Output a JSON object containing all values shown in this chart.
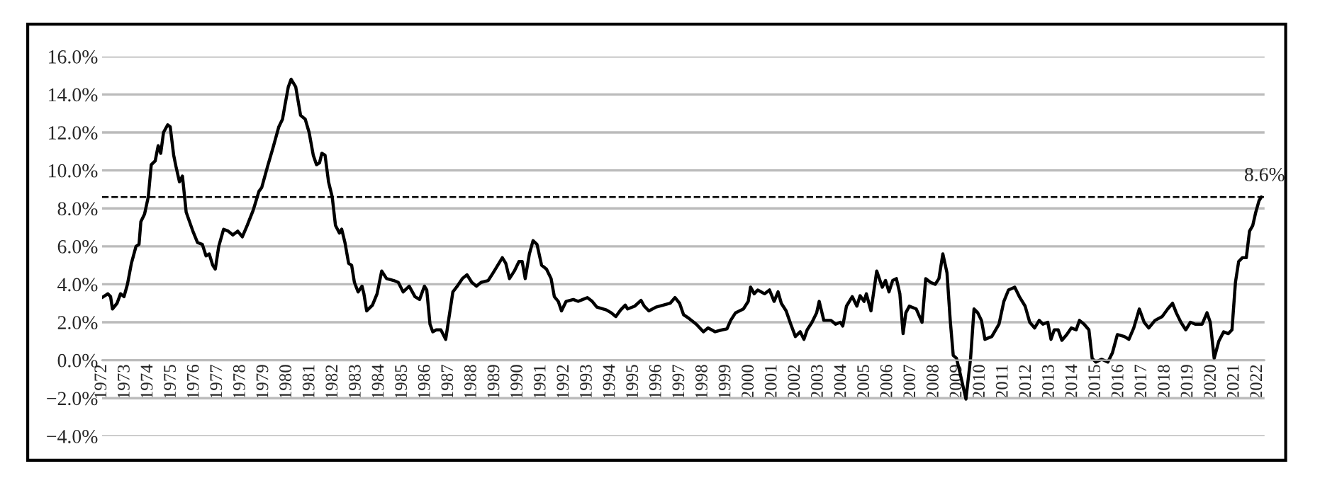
{
  "chart_data": {
    "type": "line",
    "x": [
      1972.0,
      1972.25,
      1972.37,
      1972.45,
      1972.65,
      1972.8,
      1972.95,
      1973.1,
      1973.27,
      1973.47,
      1973.6,
      1973.68,
      1973.84,
      1974.0,
      1974.13,
      1974.3,
      1974.43,
      1974.54,
      1974.66,
      1974.84,
      1974.95,
      1975.1,
      1975.2,
      1975.35,
      1975.48,
      1975.64,
      1975.93,
      1976.13,
      1976.34,
      1976.5,
      1976.64,
      1976.79,
      1976.9,
      1977.05,
      1977.26,
      1977.46,
      1977.66,
      1977.87,
      1978.07,
      1978.28,
      1978.54,
      1978.79,
      1978.91,
      1979.16,
      1979.4,
      1979.65,
      1979.81,
      1979.91,
      1980.06,
      1980.18,
      1980.38,
      1980.59,
      1980.79,
      1980.96,
      1981.14,
      1981.28,
      1981.41,
      1981.51,
      1981.65,
      1981.8,
      1981.96,
      1982.1,
      1982.27,
      1982.37,
      1982.51,
      1982.67,
      1982.8,
      1982.92,
      1983.08,
      1983.25,
      1983.33,
      1983.45,
      1983.7,
      1983.9,
      1984.1,
      1984.31,
      1984.62,
      1984.82,
      1985.03,
      1985.29,
      1985.54,
      1985.74,
      1985.95,
      1986.05,
      1986.19,
      1986.31,
      1986.46,
      1986.66,
      1986.87,
      1987.18,
      1987.34,
      1987.59,
      1987.79,
      1988.0,
      1988.2,
      1988.4,
      1988.71,
      1988.92,
      1989.12,
      1989.32,
      1989.47,
      1989.63,
      1989.84,
      1990.04,
      1990.18,
      1990.31,
      1990.49,
      1990.65,
      1990.82,
      1991.02,
      1991.23,
      1991.43,
      1991.57,
      1991.74,
      1991.88,
      1992.08,
      1992.39,
      1992.6,
      1992.8,
      1993.0,
      1993.21,
      1993.41,
      1993.82,
      1994.03,
      1994.23,
      1994.44,
      1994.64,
      1994.74,
      1995.05,
      1995.32,
      1995.46,
      1995.66,
      1995.97,
      1996.28,
      1996.58,
      1996.79,
      1996.99,
      1997.16,
      1997.4,
      1997.71,
      1998.02,
      1998.22,
      1998.53,
      1998.83,
      1999.04,
      1999.2,
      1999.41,
      1999.75,
      1999.96,
      2000.06,
      2000.22,
      2000.37,
      2000.67,
      2000.88,
      2001.08,
      2001.25,
      2001.39,
      2001.6,
      2001.8,
      2002.0,
      2002.21,
      2002.37,
      2002.51,
      2002.72,
      2002.92,
      2003.03,
      2003.23,
      2003.54,
      2003.74,
      2003.95,
      2004.05,
      2004.21,
      2004.46,
      2004.66,
      2004.8,
      2004.97,
      2005.07,
      2005.27,
      2005.52,
      2005.76,
      2005.9,
      2006.05,
      2006.21,
      2006.37,
      2006.52,
      2006.66,
      2006.78,
      2006.93,
      2007.23,
      2007.48,
      2007.64,
      2007.85,
      2008.05,
      2008.21,
      2008.38,
      2008.56,
      2008.7,
      2008.83,
      2008.97,
      2009.11,
      2009.38,
      2009.58,
      2009.73,
      2009.89,
      2010.05,
      2010.2,
      2010.5,
      2010.81,
      2011.02,
      2011.22,
      2011.49,
      2011.69,
      2011.94,
      2012.14,
      2012.35,
      2012.55,
      2012.71,
      2012.92,
      2013.06,
      2013.2,
      2013.37,
      2013.53,
      2013.74,
      2013.94,
      2014.15,
      2014.29,
      2014.49,
      2014.7,
      2014.84,
      2015.0,
      2015.25,
      2015.52,
      2015.72,
      2015.93,
      2016.23,
      2016.43,
      2016.64,
      2016.88,
      2017.09,
      2017.29,
      2017.56,
      2017.87,
      2018.11,
      2018.32,
      2018.48,
      2018.68,
      2018.89,
      2019.09,
      2019.3,
      2019.6,
      2019.81,
      2019.95,
      2020.12,
      2020.32,
      2020.53,
      2020.73,
      2020.89,
      2021.04,
      2021.18,
      2021.34,
      2021.51,
      2021.65,
      2021.79,
      2021.92,
      2022.06,
      2022.16
    ],
    "series": [
      {
        "color": "#000000",
        "values": [
          3.3,
          3.5,
          3.35,
          2.7,
          3.0,
          3.5,
          3.35,
          4.0,
          5.1,
          6.0,
          6.1,
          7.3,
          7.7,
          8.6,
          10.3,
          10.5,
          11.3,
          10.9,
          12.0,
          12.4,
          12.3,
          10.8,
          10.2,
          9.4,
          9.7,
          7.8,
          6.8,
          6.2,
          6.1,
          5.5,
          5.6,
          5.0,
          4.8,
          6.0,
          6.9,
          6.8,
          6.6,
          6.8,
          6.5,
          7.1,
          7.9,
          8.9,
          9.1,
          10.2,
          11.2,
          12.3,
          12.7,
          13.4,
          14.4,
          14.8,
          14.4,
          12.9,
          12.7,
          12.0,
          10.8,
          10.3,
          10.4,
          10.9,
          10.8,
          9.4,
          8.6,
          7.1,
          6.7,
          6.9,
          6.2,
          5.1,
          5.0,
          4.1,
          3.6,
          3.9,
          3.5,
          2.6,
          2.9,
          3.5,
          4.7,
          4.3,
          4.2,
          4.1,
          3.6,
          3.9,
          3.35,
          3.2,
          3.9,
          3.7,
          1.9,
          1.5,
          1.6,
          1.6,
          1.1,
          3.6,
          3.85,
          4.3,
          4.5,
          4.1,
          3.9,
          4.1,
          4.2,
          4.6,
          5.0,
          5.4,
          5.1,
          4.3,
          4.7,
          5.2,
          5.2,
          4.3,
          5.6,
          6.3,
          6.1,
          5.0,
          4.8,
          4.3,
          3.35,
          3.1,
          2.6,
          3.1,
          3.2,
          3.1,
          3.2,
          3.3,
          3.1,
          2.8,
          2.65,
          2.5,
          2.3,
          2.65,
          2.9,
          2.7,
          2.85,
          3.15,
          2.85,
          2.6,
          2.8,
          2.9,
          3.0,
          3.3,
          3.0,
          2.4,
          2.2,
          1.9,
          1.5,
          1.7,
          1.5,
          1.6,
          1.65,
          2.1,
          2.5,
          2.7,
          3.1,
          3.85,
          3.5,
          3.7,
          3.5,
          3.7,
          3.1,
          3.6,
          3.0,
          2.6,
          1.9,
          1.25,
          1.5,
          1.1,
          1.6,
          2.0,
          2.5,
          3.1,
          2.1,
          2.1,
          1.9,
          2.0,
          1.8,
          2.85,
          3.35,
          2.85,
          3.4,
          3.1,
          3.5,
          2.6,
          4.7,
          3.85,
          4.2,
          3.6,
          4.2,
          4.3,
          3.5,
          1.4,
          2.5,
          2.85,
          2.7,
          2.0,
          4.3,
          4.1,
          4.0,
          4.3,
          5.6,
          4.6,
          2.1,
          0.25,
          0.1,
          -0.6,
          -2.05,
          0.1,
          2.7,
          2.5,
          2.1,
          1.1,
          1.25,
          1.9,
          3.1,
          3.7,
          3.85,
          3.35,
          2.85,
          2.0,
          1.7,
          2.1,
          1.9,
          2.0,
          1.1,
          1.6,
          1.6,
          1.05,
          1.35,
          1.7,
          1.6,
          2.1,
          1.9,
          1.6,
          0.1,
          -0.1,
          0.05,
          -0.1,
          0.4,
          1.35,
          1.25,
          1.1,
          1.7,
          2.7,
          2.0,
          1.7,
          2.1,
          2.3,
          2.7,
          3.0,
          2.5,
          2.0,
          1.6,
          2.0,
          1.9,
          1.9,
          2.5,
          2.0,
          0.1,
          1.0,
          1.5,
          1.4,
          1.6,
          4.1,
          5.2,
          5.4,
          5.4,
          6.8,
          7.1,
          7.8,
          8.4,
          8.6
        ]
      }
    ],
    "xlim": [
      1972.0,
      2022.3
    ],
    "xticks": [
      1972,
      1973,
      1974,
      1975,
      1976,
      1977,
      1978,
      1979,
      1980,
      1981,
      1982,
      1983,
      1984,
      1985,
      1986,
      1987,
      1988,
      1989,
      1990,
      1991,
      1992,
      1993,
      1994,
      1995,
      1996,
      1997,
      1998,
      1999,
      2000,
      2001,
      2002,
      2003,
      2004,
      2005,
      2006,
      2007,
      2008,
      2009,
      2010,
      2011,
      2012,
      2013,
      2014,
      2015,
      2016,
      2017,
      2018,
      2019,
      2020,
      2021,
      2022
    ],
    "ylim": [
      -4,
      16
    ],
    "yticks": [
      {
        "value": -4,
        "label": "−4.0%"
      },
      {
        "value": -2,
        "label": "−2.0%"
      },
      {
        "value": 0,
        "label": "0.0%"
      },
      {
        "value": 2,
        "label": "2.0%"
      },
      {
        "value": 4,
        "label": "4.0%"
      },
      {
        "value": 6,
        "label": "6.0%"
      },
      {
        "value": 8,
        "label": "8.0%"
      },
      {
        "value": 10,
        "label": "10.0%"
      },
      {
        "value": 12,
        "label": "12.0%"
      },
      {
        "value": 14,
        "label": "14.0%"
      },
      {
        "value": 16,
        "label": "16.0%"
      }
    ],
    "ref_lines": [
      {
        "axis": "y",
        "value": 8.6,
        "label": "8.6%",
        "color": "#000000",
        "line_style": "dashed"
      }
    ],
    "grid": "y",
    "line_style": "solid",
    "marker": "none"
  }
}
